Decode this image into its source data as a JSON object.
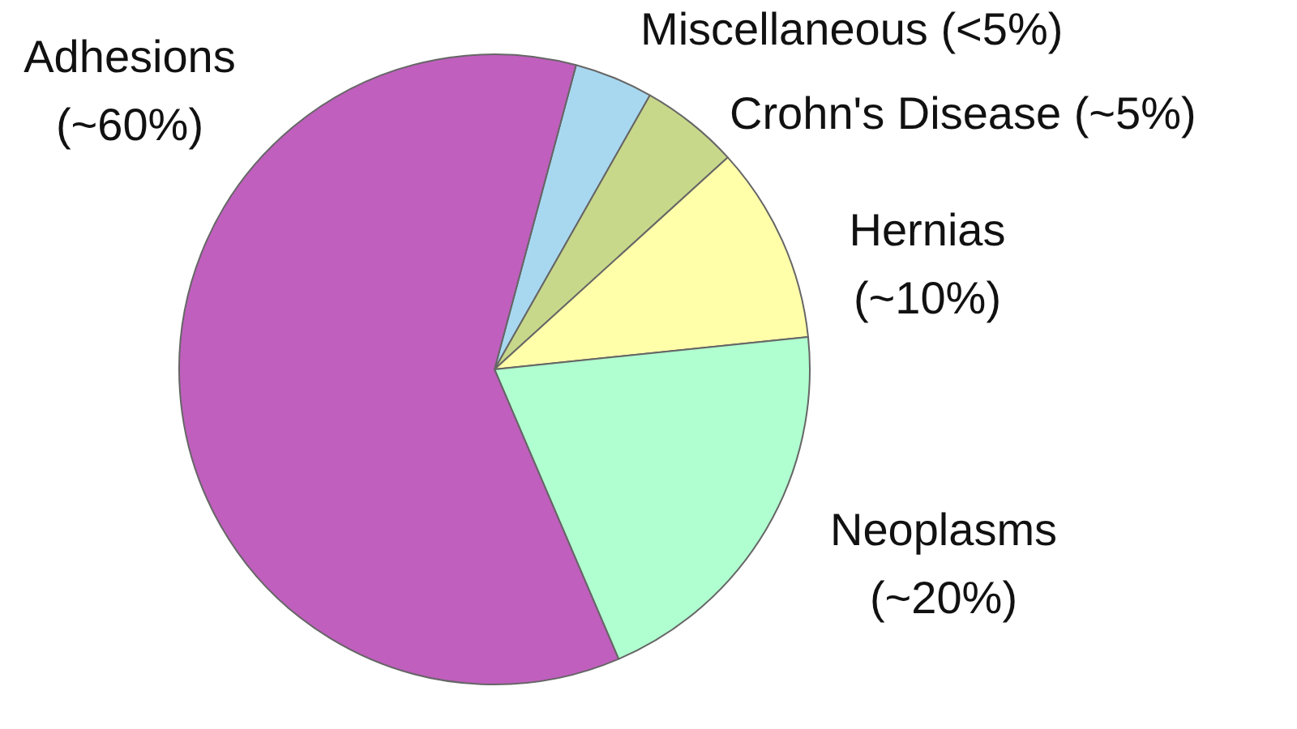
{
  "chart_data": {
    "type": "pie",
    "categories": [
      "Miscellaneous",
      "Crohn's Disease",
      "Hernias",
      "Neoplasms",
      "Adhesions"
    ],
    "values": [
      4,
      5,
      10,
      20,
      60
    ],
    "colors": [
      "#a8d8f0",
      "#c8d88a",
      "#ffffaa",
      "#b0ffd0",
      "#c05fbe"
    ],
    "value_labels": [
      "(<5%)",
      "(~5%)",
      "(~10%)",
      "(~20%)",
      "(~60%)"
    ],
    "legend": false
  }
}
